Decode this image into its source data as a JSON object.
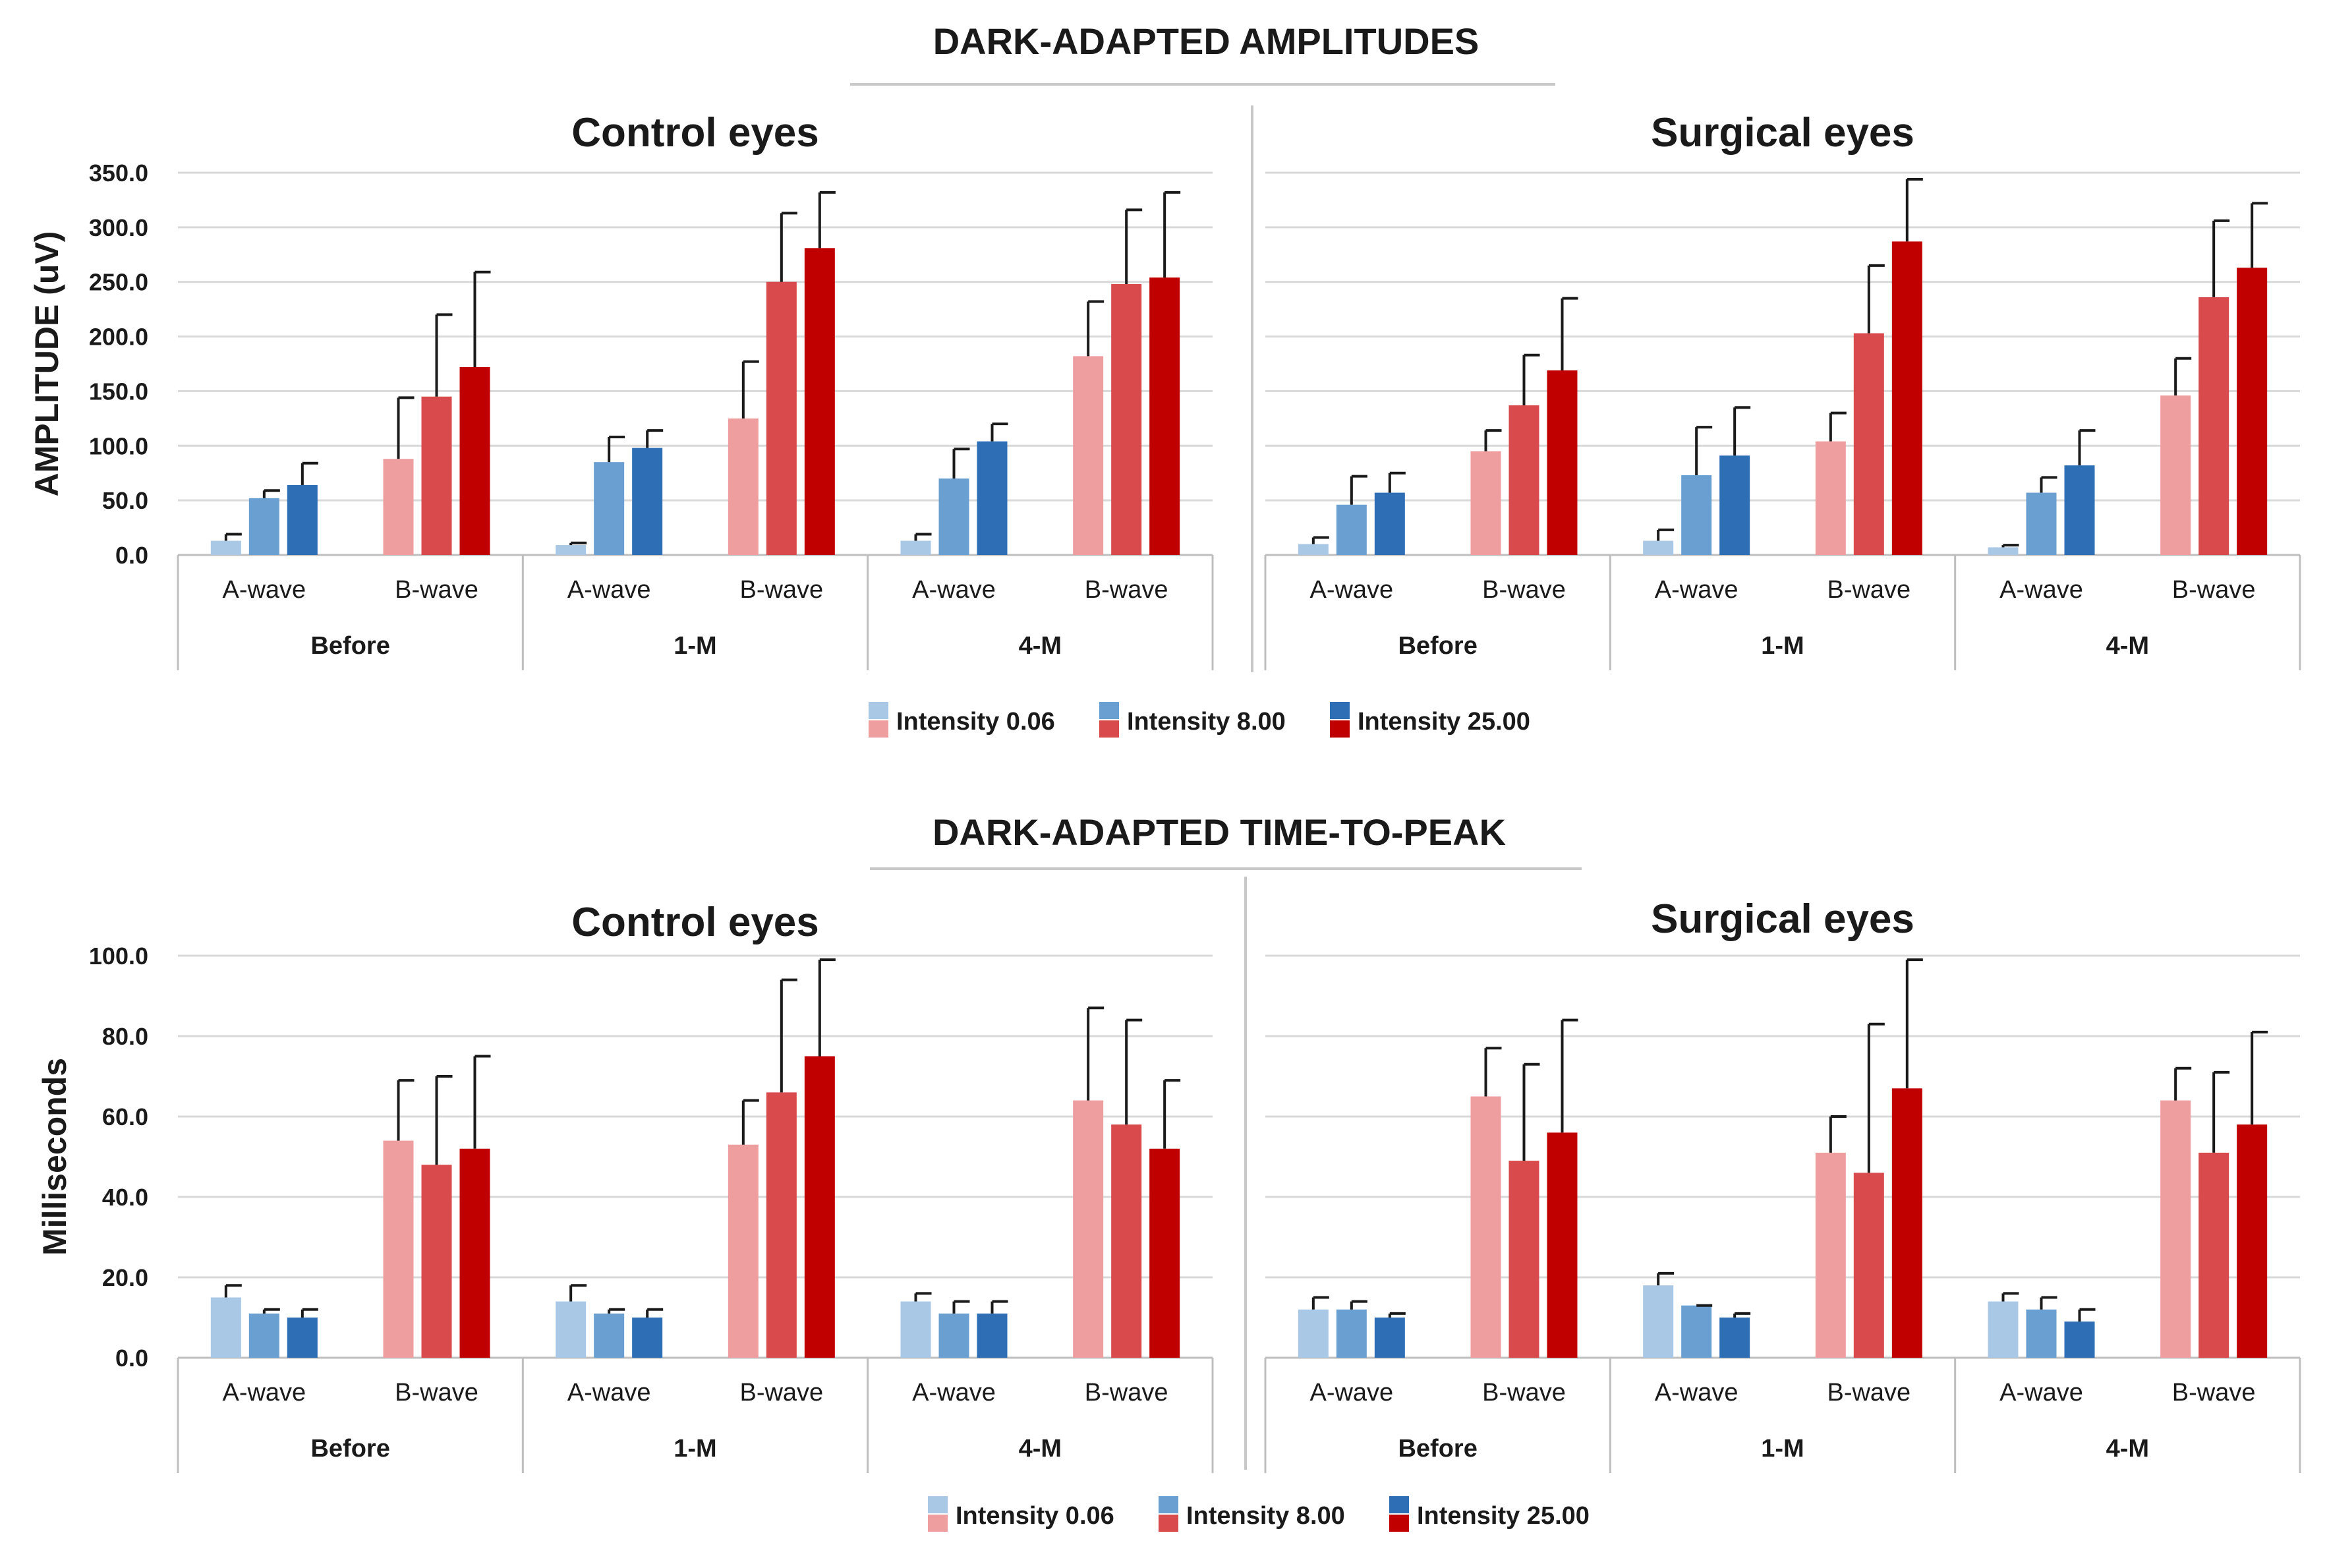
{
  "colors": {
    "a_wave": [
      "#a9c8e6",
      "#6a9fd2",
      "#2e6eb5"
    ],
    "b_wave": [
      "#ef9ea0",
      "#d84a4c",
      "#c00000"
    ],
    "text": "#1a1a1a",
    "grid": "#d9d9d9"
  },
  "chart_data": [
    {
      "type": "bar",
      "section": "DARK-ADAPTED AMPLITUDES",
      "title": "Control eyes",
      "ylabel": "AMPLITUDE (uV)",
      "ylim": [
        0,
        350
      ],
      "yticks": [
        "0.0",
        "50.0",
        "100.0",
        "150.0",
        "200.0",
        "250.0",
        "300.0",
        "350.0"
      ],
      "periods": [
        "Before",
        "1-M",
        "4-M"
      ],
      "waves": [
        "A-wave",
        "B-wave"
      ],
      "series": [
        {
          "name": "Intensity 0.06",
          "values": [
            13,
            88,
            9,
            125,
            13,
            182
          ],
          "errors": [
            6,
            56,
            2,
            52,
            6,
            50
          ]
        },
        {
          "name": "Intensity 8.00",
          "values": [
            52,
            145,
            85,
            250,
            70,
            248
          ],
          "errors": [
            7,
            75,
            23,
            63,
            27,
            68
          ]
        },
        {
          "name": "Intensity 25.00",
          "values": [
            64,
            172,
            98,
            281,
            104,
            254
          ],
          "errors": [
            20,
            87,
            16,
            51,
            16,
            78
          ]
        }
      ]
    },
    {
      "type": "bar",
      "section": "DARK-ADAPTED AMPLITUDES",
      "title": "Surgical eyes",
      "ylabel": "",
      "ylim": [
        0,
        350
      ],
      "yticks": [],
      "periods": [
        "Before",
        "1-M",
        "4-M"
      ],
      "waves": [
        "A-wave",
        "B-wave"
      ],
      "series": [
        {
          "name": "Intensity 0.06",
          "values": [
            10,
            95,
            13,
            104,
            7,
            146
          ],
          "errors": [
            6,
            19,
            10,
            26,
            2,
            34
          ]
        },
        {
          "name": "Intensity 8.00",
          "values": [
            46,
            137,
            73,
            203,
            57,
            236
          ],
          "errors": [
            26,
            46,
            44,
            62,
            14,
            70
          ]
        },
        {
          "name": "Intensity 25.00",
          "values": [
            57,
            169,
            91,
            287,
            82,
            263
          ],
          "errors": [
            18,
            66,
            44,
            57,
            32,
            59
          ]
        }
      ]
    },
    {
      "type": "bar",
      "section": "DARK-ADAPTED TIME-TO-PEAK",
      "title": "Control eyes",
      "ylabel": "Milliseconds",
      "ylim": [
        0,
        100
      ],
      "yticks": [
        "0.0",
        "20.0",
        "40.0",
        "60.0",
        "80.0",
        "100.0"
      ],
      "periods": [
        "Before",
        "1-M",
        "4-M"
      ],
      "waves": [
        "A-wave",
        "B-wave"
      ],
      "series": [
        {
          "name": "Intensity 0.06",
          "values": [
            15,
            54,
            14,
            53,
            14,
            64
          ],
          "errors": [
            3,
            15,
            4,
            11,
            2,
            23
          ]
        },
        {
          "name": "Intensity 8.00",
          "values": [
            11,
            48,
            11,
            66,
            11,
            58
          ],
          "errors": [
            1,
            22,
            1,
            28,
            3,
            26
          ]
        },
        {
          "name": "Intensity 25.00",
          "values": [
            10,
            52,
            10,
            75,
            11,
            52
          ],
          "errors": [
            2,
            23,
            2,
            24,
            3,
            17
          ]
        }
      ]
    },
    {
      "type": "bar",
      "section": "DARK-ADAPTED TIME-TO-PEAK",
      "title": "Surgical eyes",
      "ylabel": "",
      "ylim": [
        0,
        100
      ],
      "yticks": [],
      "periods": [
        "Before",
        "1-M",
        "4-M"
      ],
      "waves": [
        "A-wave",
        "B-wave"
      ],
      "series": [
        {
          "name": "Intensity 0.06",
          "values": [
            12,
            65,
            18,
            51,
            14,
            64
          ],
          "errors": [
            3,
            12,
            3,
            9,
            2,
            8
          ]
        },
        {
          "name": "Intensity 8.00",
          "values": [
            12,
            49,
            13,
            46,
            12,
            51
          ],
          "errors": [
            2,
            24,
            0,
            37,
            3,
            20
          ]
        },
        {
          "name": "Intensity 25.00",
          "values": [
            10,
            56,
            10,
            67,
            9,
            58
          ],
          "errors": [
            1,
            28,
            1,
            32,
            3,
            23
          ]
        }
      ]
    }
  ],
  "sections": [
    "DARK-ADAPTED AMPLITUDES",
    "DARK-ADAPTED TIME-TO-PEAK"
  ],
  "legend": [
    "Intensity 0.06",
    "Intensity 8.00",
    "Intensity 25.00"
  ]
}
